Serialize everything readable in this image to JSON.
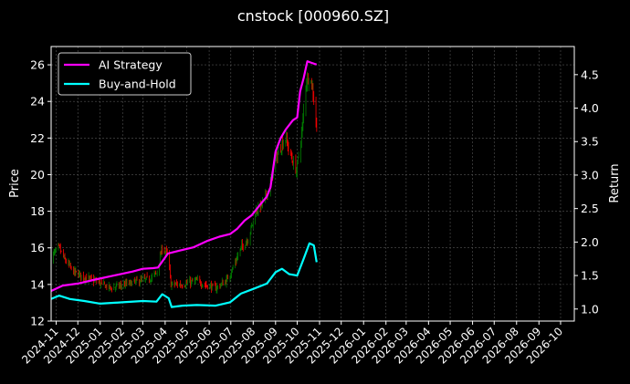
{
  "chart_data": {
    "type": "line",
    "title": "cnstock [000960.SZ]",
    "ylabel": "Price",
    "y2label": "Return",
    "ylim": [
      12,
      27
    ],
    "y2lim": [
      0.82,
      4.92
    ],
    "yticks": [
      12,
      14,
      16,
      18,
      20,
      22,
      24,
      26
    ],
    "y2ticks": [
      1.0,
      1.5,
      2.0,
      2.5,
      3.0,
      3.5,
      4.0,
      4.5
    ],
    "y2tick_labels": [
      "1.0",
      "1.5",
      "2.0",
      "2.5",
      "3.0",
      "3.5",
      "4.0",
      "4.5"
    ],
    "xlim": [
      "2024-10-25",
      "2026-10-20"
    ],
    "xticks": [
      "2024-11-01",
      "2024-12-01",
      "2025-01-01",
      "2025-02-01",
      "2025-03-01",
      "2025-04-01",
      "2025-05-01",
      "2025-06-01",
      "2025-07-01",
      "2025-08-01",
      "2025-09-01",
      "2025-10-01",
      "2025-11-01",
      "2025-12-01",
      "2026-01-01",
      "2026-02-01",
      "2026-03-01",
      "2026-04-01",
      "2026-05-01",
      "2026-06-01",
      "2026-07-01",
      "2026-08-01",
      "2026-09-01",
      "2026-10-01"
    ],
    "xtick_labels": [
      "2024-11",
      "2024-12",
      "2025-01",
      "2025-02",
      "2025-03",
      "2025-04",
      "2025-05",
      "2025-06",
      "2025-07",
      "2025-08",
      "2025-09",
      "2025-10",
      "2025-11",
      "2025-12",
      "2026-01",
      "2026-02",
      "2026-03",
      "2026-04",
      "2026-05",
      "2026-06",
      "2026-07",
      "2026-08",
      "2026-09",
      "2026-10"
    ],
    "grid": true,
    "legend_position": "top-left",
    "colors": {
      "up": "#008000",
      "down": "#ff0000",
      "ai": "#ff00ff",
      "bh": "#00ffff",
      "background": "#000000",
      "grid": "#555555"
    },
    "price_series": {
      "name": "Price",
      "anchors": [
        [
          "2024-10-25",
          15.5
        ],
        [
          "2024-11-05",
          16.0
        ],
        [
          "2024-11-12",
          15.4
        ],
        [
          "2024-11-25",
          14.7
        ],
        [
          "2024-12-10",
          14.4
        ],
        [
          "2024-12-25",
          14.2
        ],
        [
          "2025-01-15",
          13.8
        ],
        [
          "2025-02-05",
          14.0
        ],
        [
          "2025-02-25",
          14.2
        ],
        [
          "2025-03-10",
          14.3
        ],
        [
          "2025-03-20",
          14.6
        ],
        [
          "2025-03-28",
          16.0
        ],
        [
          "2025-04-05",
          15.6
        ],
        [
          "2025-04-09",
          14.0
        ],
        [
          "2025-04-25",
          14.0
        ],
        [
          "2025-05-15",
          14.2
        ],
        [
          "2025-05-25",
          14.0
        ],
        [
          "2025-06-10",
          13.8
        ],
        [
          "2025-06-25",
          14.2
        ],
        [
          "2025-07-05",
          15.0
        ],
        [
          "2025-07-15",
          16.0
        ],
        [
          "2025-07-25",
          16.5
        ],
        [
          "2025-08-05",
          18.0
        ],
        [
          "2025-08-15",
          18.5
        ],
        [
          "2025-08-25",
          19.5
        ],
        [
          "2025-09-01",
          20.8
        ],
        [
          "2025-09-08",
          21.5
        ],
        [
          "2025-09-15",
          22.0
        ],
        [
          "2025-09-22",
          21.0
        ],
        [
          "2025-09-30",
          20.2
        ],
        [
          "2025-10-08",
          22.5
        ],
        [
          "2025-10-13",
          25.0
        ],
        [
          "2025-10-18",
          25.5
        ],
        [
          "2025-10-23",
          24.5
        ],
        [
          "2025-10-28",
          22.5
        ]
      ]
    },
    "series": [
      {
        "name": "AI Strategy",
        "points": [
          [
            "2024-10-25",
            1.27
          ],
          [
            "2024-11-10",
            1.35
          ],
          [
            "2024-12-01",
            1.38
          ],
          [
            "2024-12-25",
            1.44
          ],
          [
            "2025-01-20",
            1.5
          ],
          [
            "2025-02-15",
            1.56
          ],
          [
            "2025-03-01",
            1.6
          ],
          [
            "2025-03-15",
            1.61
          ],
          [
            "2025-03-22",
            1.62
          ],
          [
            "2025-04-05",
            1.83
          ],
          [
            "2025-04-20",
            1.87
          ],
          [
            "2025-05-10",
            1.92
          ],
          [
            "2025-05-30",
            2.02
          ],
          [
            "2025-06-15",
            2.08
          ],
          [
            "2025-06-30",
            2.12
          ],
          [
            "2025-07-10",
            2.2
          ],
          [
            "2025-07-20",
            2.32
          ],
          [
            "2025-07-30",
            2.4
          ],
          [
            "2025-08-10",
            2.55
          ],
          [
            "2025-08-20",
            2.68
          ],
          [
            "2025-08-25",
            2.82
          ],
          [
            "2025-09-01",
            3.35
          ],
          [
            "2025-09-08",
            3.55
          ],
          [
            "2025-09-15",
            3.68
          ],
          [
            "2025-09-25",
            3.82
          ],
          [
            "2025-10-01",
            3.86
          ],
          [
            "2025-10-05",
            4.25
          ],
          [
            "2025-10-10",
            4.45
          ],
          [
            "2025-10-15",
            4.7
          ],
          [
            "2025-10-20",
            4.68
          ],
          [
            "2025-10-28",
            4.65
          ]
        ]
      },
      {
        "name": "Buy-and-Hold",
        "points": [
          [
            "2024-10-25",
            1.15
          ],
          [
            "2024-11-05",
            1.2
          ],
          [
            "2024-11-20",
            1.15
          ],
          [
            "2024-12-10",
            1.12
          ],
          [
            "2025-01-01",
            1.08
          ],
          [
            "2025-02-01",
            1.1
          ],
          [
            "2025-03-01",
            1.12
          ],
          [
            "2025-03-20",
            1.11
          ],
          [
            "2025-03-28",
            1.22
          ],
          [
            "2025-04-06",
            1.16
          ],
          [
            "2025-04-10",
            1.03
          ],
          [
            "2025-04-25",
            1.05
          ],
          [
            "2025-05-15",
            1.06
          ],
          [
            "2025-06-10",
            1.05
          ],
          [
            "2025-06-30",
            1.1
          ],
          [
            "2025-07-15",
            1.23
          ],
          [
            "2025-08-01",
            1.3
          ],
          [
            "2025-08-20",
            1.38
          ],
          [
            "2025-09-01",
            1.55
          ],
          [
            "2025-09-10",
            1.6
          ],
          [
            "2025-09-20",
            1.52
          ],
          [
            "2025-10-01",
            1.5
          ],
          [
            "2025-10-10",
            1.75
          ],
          [
            "2025-10-18",
            1.98
          ],
          [
            "2025-10-24",
            1.95
          ],
          [
            "2025-10-28",
            1.7
          ]
        ]
      }
    ]
  }
}
